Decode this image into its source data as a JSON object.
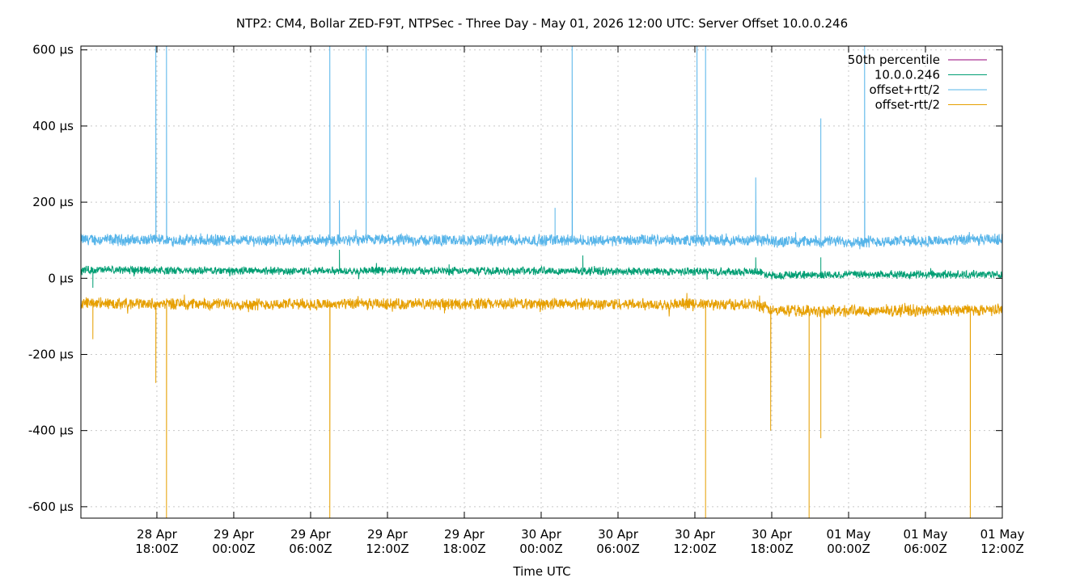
{
  "chart_data": {
    "type": "line",
    "title": "NTP2: CM4, Bollar ZED-F9T, NTPSec - Three Day - May 01, 2026 12:00 UTC: Server Offset 10.0.0.246",
    "xlabel": "Time UTC",
    "ylabel": "",
    "ylim": [
      -630,
      610
    ],
    "xlim": [
      "2026-04-28T12:04:00Z",
      "2026-05-01T12:00:00Z"
    ],
    "grid": true,
    "legend_position": "top-right",
    "y_ticks": [
      {
        "value": 600,
        "label": "600 µs"
      },
      {
        "value": 400,
        "label": "400 µs"
      },
      {
        "value": 200,
        "label": "200 µs"
      },
      {
        "value": 0,
        "label": "0 µs"
      },
      {
        "value": -200,
        "label": "-200 µs"
      },
      {
        "value": -400,
        "label": "-400 µs"
      },
      {
        "value": -600,
        "label": "-600 µs"
      }
    ],
    "x_ticks": [
      {
        "value": "2026-04-28T18:00:00Z",
        "line1": "28 Apr",
        "line2": "18:00Z"
      },
      {
        "value": "2026-04-29T00:00:00Z",
        "line1": "29 Apr",
        "line2": "00:00Z"
      },
      {
        "value": "2026-04-29T06:00:00Z",
        "line1": "29 Apr",
        "line2": "06:00Z"
      },
      {
        "value": "2026-04-29T12:00:00Z",
        "line1": "29 Apr",
        "line2": "12:00Z"
      },
      {
        "value": "2026-04-29T18:00:00Z",
        "line1": "29 Apr",
        "line2": "18:00Z"
      },
      {
        "value": "2026-04-30T00:00:00Z",
        "line1": "30 Apr",
        "line2": "00:00Z"
      },
      {
        "value": "2026-04-30T06:00:00Z",
        "line1": "30 Apr",
        "line2": "06:00Z"
      },
      {
        "value": "2026-04-30T12:00:00Z",
        "line1": "30 Apr",
        "line2": "12:00Z"
      },
      {
        "value": "2026-04-30T18:00:00Z",
        "line1": "30 Apr",
        "line2": "18:00Z"
      },
      {
        "value": "2026-05-01T00:00:00Z",
        "line1": "01 May",
        "line2": "00:00Z"
      },
      {
        "value": "2026-05-01T06:00:00Z",
        "line1": "01 May",
        "line2": "06:00Z"
      },
      {
        "value": "2026-05-01T12:00:00Z",
        "line1": "01 May",
        "line2": "12:00Z"
      }
    ],
    "series": [
      {
        "name": "50th percentile",
        "color": "#94007a",
        "x": [],
        "y": []
      },
      {
        "name": "10.0.0.246",
        "color": "#009e73",
        "x": [
          "2026-04-28T12:04:00Z",
          "2026-04-28T18:00:00Z",
          "2026-04-28T18:45:00Z",
          "2026-04-29T00:00:00Z",
          "2026-04-29T06:00:00Z",
          "2026-04-29T06:30:00Z",
          "2026-04-29T12:00:00Z",
          "2026-04-29T18:00:00Z",
          "2026-04-30T00:00:00Z",
          "2026-04-30T06:00:00Z",
          "2026-04-30T12:00:00Z",
          "2026-04-30T17:00:00Z",
          "2026-04-30T18:00:00Z",
          "2026-05-01T00:00:00Z",
          "2026-05-01T06:00:00Z",
          "2026-05-01T12:00:00Z"
        ],
        "y": [
          22,
          22,
          20,
          20,
          19,
          20,
          20,
          19,
          20,
          18,
          18,
          17,
          8,
          10,
          10,
          10
        ]
      },
      {
        "name": "offset+rtt/2",
        "color": "#56b4e9",
        "x": [
          "2026-04-28T12:04:00Z",
          "2026-04-28T18:00:00Z",
          "2026-04-28T18:45:00Z",
          "2026-04-29T00:00:00Z",
          "2026-04-29T06:00:00Z",
          "2026-04-29T06:30:00Z",
          "2026-04-29T12:00:00Z",
          "2026-04-29T18:00:00Z",
          "2026-04-30T00:00:00Z",
          "2026-04-30T06:00:00Z",
          "2026-04-30T12:00:00Z",
          "2026-04-30T17:00:00Z",
          "2026-04-30T18:00:00Z",
          "2026-05-01T00:00:00Z",
          "2026-05-01T06:00:00Z",
          "2026-05-01T12:00:00Z"
        ],
        "y": [
          102,
          100,
          100,
          100,
          100,
          100,
          100,
          100,
          100,
          100,
          100,
          100,
          97,
          97,
          98,
          102
        ]
      },
      {
        "name": "offset-rtt/2",
        "color": "#e69f00",
        "x": [
          "2026-04-28T12:04:00Z",
          "2026-04-28T18:00:00Z",
          "2026-04-28T18:45:00Z",
          "2026-04-29T00:00:00Z",
          "2026-04-29T06:00:00Z",
          "2026-04-29T06:30:00Z",
          "2026-04-29T12:00:00Z",
          "2026-04-29T18:00:00Z",
          "2026-04-30T00:00:00Z",
          "2026-04-30T06:00:00Z",
          "2026-04-30T12:00:00Z",
          "2026-04-30T17:00:00Z",
          "2026-04-30T18:00:00Z",
          "2026-05-01T00:00:00Z",
          "2026-05-01T06:00:00Z",
          "2026-05-01T12:00:00Z"
        ],
        "y": [
          -65,
          -67,
          -67,
          -68,
          -68,
          -68,
          -68,
          -67,
          -67,
          -68,
          -68,
          -70,
          -85,
          -85,
          -85,
          -82
        ]
      }
    ],
    "spikes": [
      {
        "series": "offset+rtt/2",
        "x": "2026-04-28T17:55:00Z",
        "y": 610
      },
      {
        "series": "offset+rtt/2",
        "x": "2026-04-28T18:45:00Z",
        "y": 610
      },
      {
        "series": "offset+rtt/2",
        "x": "2026-04-29T07:30:00Z",
        "y": 610
      },
      {
        "series": "offset+rtt/2",
        "x": "2026-04-29T08:15:00Z",
        "y": 205
      },
      {
        "series": "offset+rtt/2",
        "x": "2026-04-29T10:20:00Z",
        "y": 610
      },
      {
        "series": "offset+rtt/2",
        "x": "2026-04-30T01:05:00Z",
        "y": 185
      },
      {
        "series": "offset+rtt/2",
        "x": "2026-04-30T02:25:00Z",
        "y": 610
      },
      {
        "series": "offset+rtt/2",
        "x": "2026-04-30T12:10:00Z",
        "y": 610
      },
      {
        "series": "offset+rtt/2",
        "x": "2026-04-30T12:50:00Z",
        "y": 610
      },
      {
        "series": "offset+rtt/2",
        "x": "2026-04-30T16:45:00Z",
        "y": 265
      },
      {
        "series": "offset+rtt/2",
        "x": "2026-04-30T21:50:00Z",
        "y": 420
      },
      {
        "series": "offset+rtt/2",
        "x": "2026-05-01T01:15:00Z",
        "y": 610
      },
      {
        "series": "10.0.0.246",
        "x": "2026-04-28T13:00:00Z",
        "y": -25
      },
      {
        "series": "10.0.0.246",
        "x": "2026-04-29T08:15:00Z",
        "y": 75
      },
      {
        "series": "10.0.0.246",
        "x": "2026-04-30T03:15:00Z",
        "y": 60
      },
      {
        "series": "10.0.0.246",
        "x": "2026-04-30T16:45:00Z",
        "y": 55
      },
      {
        "series": "10.0.0.246",
        "x": "2026-04-30T21:50:00Z",
        "y": 55
      },
      {
        "series": "offset-rtt/2",
        "x": "2026-04-28T13:00:00Z",
        "y": -160
      },
      {
        "series": "offset-rtt/2",
        "x": "2026-04-28T17:55:00Z",
        "y": -275
      },
      {
        "series": "offset-rtt/2",
        "x": "2026-04-28T18:45:00Z",
        "y": -630
      },
      {
        "series": "offset-rtt/2",
        "x": "2026-04-29T07:30:00Z",
        "y": -630
      },
      {
        "series": "offset-rtt/2",
        "x": "2026-04-30T12:50:00Z",
        "y": -630
      },
      {
        "series": "offset-rtt/2",
        "x": "2026-04-30T17:55:00Z",
        "y": -400
      },
      {
        "series": "offset-rtt/2",
        "x": "2026-04-30T20:55:00Z",
        "y": -630
      },
      {
        "series": "offset-rtt/2",
        "x": "2026-04-30T21:50:00Z",
        "y": -420
      },
      {
        "series": "offset-rtt/2",
        "x": "2026-05-01T09:30:00Z",
        "y": -630
      }
    ],
    "noise_amplitude": {
      "10.0.0.246": 11,
      "offset+rtt/2": 16,
      "offset-rtt/2": 16
    }
  }
}
